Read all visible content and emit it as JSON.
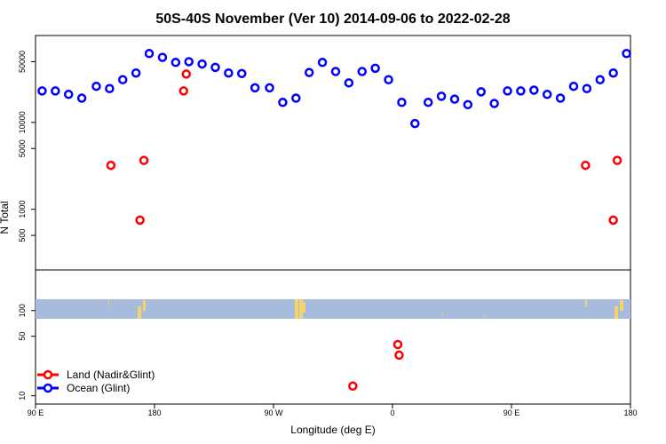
{
  "chart_data": {
    "type": "scatter",
    "title": "50S-40S November (Ver 10)   2014-09-06 to 2022-02-28",
    "xlabel": "Longitude (deg E)",
    "ylabel": "N Total",
    "xlim": [
      90,
      450
    ],
    "x_ticks": [
      {
        "value": 90,
        "label": "90 E"
      },
      {
        "value": 180,
        "label": "180"
      },
      {
        "value": 270,
        "label": "90 W"
      },
      {
        "value": 360,
        "label": "0"
      },
      {
        "value": 450,
        "label": "90 E"
      },
      {
        "value": 540,
        "label": "180"
      }
    ],
    "xlim_full": [
      90,
      540
    ],
    "upper_panel": {
      "ylim": [
        200,
        100000
      ],
      "log_scale": true,
      "y_ticks": [
        {
          "value": 500,
          "label": "500"
        },
        {
          "value": 1000,
          "label": "1000"
        },
        {
          "value": 5000,
          "label": "5000"
        },
        {
          "value": 10000,
          "label": "10000"
        },
        {
          "value": 50000,
          "label": "50000"
        }
      ]
    },
    "lower_panel": {
      "ylim": [
        8,
        300
      ],
      "log_scale": true,
      "land_band": true,
      "y_ticks": [
        {
          "value": 10,
          "label": "10"
        },
        {
          "value": 50,
          "label": "50"
        },
        {
          "value": 100,
          "label": "100"
        }
      ]
    },
    "series": [
      {
        "name": "Land (Nadir&Glint)",
        "color": "#ff0000",
        "upper": [
          [
            147,
            3200
          ],
          [
            169,
            750
          ],
          [
            172,
            3650
          ],
          [
            202,
            23000
          ],
          [
            204,
            36000
          ],
          [
            506,
            3200
          ],
          [
            527,
            750
          ],
          [
            530,
            3650
          ]
        ],
        "lower": [
          [
            330,
            13
          ],
          [
            364,
            40
          ],
          [
            365,
            30
          ]
        ]
      },
      {
        "name": "Ocean (Glint)",
        "color": "#0000ff",
        "upper": [
          [
            95,
            23000
          ],
          [
            105,
            23000
          ],
          [
            115,
            21000
          ],
          [
            125,
            19000
          ],
          [
            136,
            26000
          ],
          [
            146,
            24500
          ],
          [
            156,
            31000
          ],
          [
            166,
            37000
          ],
          [
            176,
            62000
          ],
          [
            186,
            56000
          ],
          [
            196,
            49000
          ],
          [
            206,
            50000
          ],
          [
            216,
            47000
          ],
          [
            226,
            43000
          ],
          [
            236,
            37000
          ],
          [
            246,
            36500
          ],
          [
            256,
            25000
          ],
          [
            267,
            25000
          ],
          [
            277,
            17000
          ],
          [
            287,
            19000
          ],
          [
            297,
            37500
          ],
          [
            307,
            49000
          ],
          [
            317,
            38500
          ],
          [
            327,
            28500
          ],
          [
            337,
            38500
          ],
          [
            347,
            42000
          ],
          [
            357,
            31000
          ],
          [
            367,
            17000
          ],
          [
            377,
            9700
          ],
          [
            387,
            17000
          ],
          [
            397,
            20000
          ],
          [
            407,
            18500
          ],
          [
            417,
            16000
          ],
          [
            427,
            22500
          ],
          [
            437,
            16500
          ],
          [
            447,
            23000
          ],
          [
            457,
            23000
          ],
          [
            467,
            23500
          ],
          [
            477,
            21000
          ],
          [
            487,
            19000
          ],
          [
            497,
            26000
          ],
          [
            507,
            24500
          ],
          [
            517,
            31000
          ],
          [
            527,
            37000
          ],
          [
            537,
            62000
          ]
        ]
      }
    ],
    "legend": "bottom-left"
  }
}
